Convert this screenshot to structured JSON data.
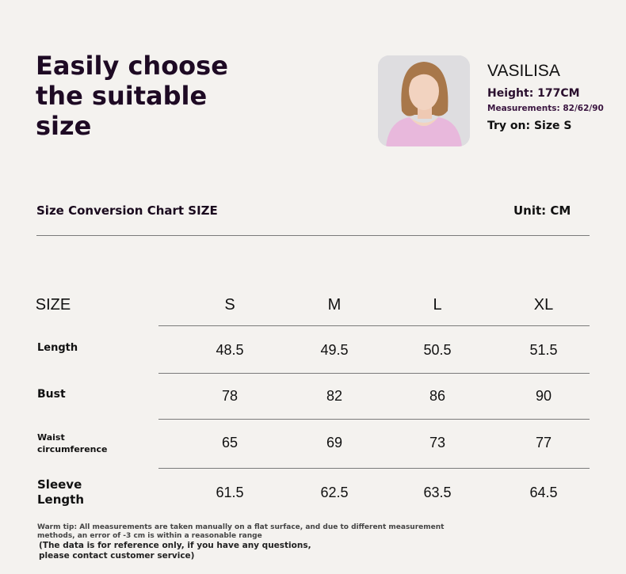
{
  "headline": "Easily choose the suitable size",
  "model": {
    "name": "VASILISA",
    "height": "Height: 177CM",
    "measurements": "Measurements: 82/62/90",
    "try_on": "Try on: Size S"
  },
  "chart_title": "Size Conversion Chart SIZE",
  "unit": "Unit: CM",
  "table": {
    "headers": [
      "SIZE",
      "S",
      "M",
      "L",
      "XL"
    ],
    "rows": [
      {
        "label": "Length",
        "values": [
          "48.5",
          "49.5",
          "50.5",
          "51.5"
        ]
      },
      {
        "label": "Bust",
        "values": [
          "78",
          "82",
          "86",
          "90"
        ]
      },
      {
        "label": "Waist circumference",
        "values": [
          "65",
          "69",
          "73",
          "77"
        ]
      },
      {
        "label": "Sleeve Length",
        "values": [
          "61.5",
          "62.5",
          "63.5",
          "64.5"
        ]
      }
    ]
  },
  "tip": "Warm tip: All measurements are taken manually on a flat surface, and due to different measurement methods, an error of -3 cm is within a reasonable range",
  "note": "(The data is for reference only, if you have any questions, please contact customer service)"
}
